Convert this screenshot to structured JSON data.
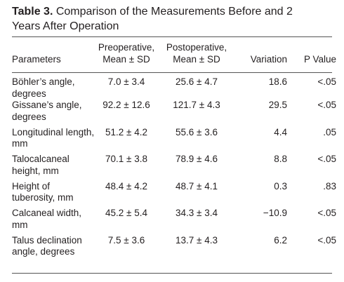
{
  "title": {
    "label": "Table 3.",
    "text": "Comparison of the Measurements Before and 2 Years After Operation"
  },
  "table": {
    "header": [
      [
        "Parameters"
      ],
      [
        "Preoperative,",
        "Mean ± SD"
      ],
      [
        "Postoperative,",
        "Mean ± SD"
      ],
      [
        "Variation"
      ],
      [
        "P Value"
      ]
    ],
    "rows": [
      [
        "Böhler’s angle, degrees",
        "7.0 ± 3.4",
        "25.6 ± 4.7",
        "18.6",
        "<.05"
      ],
      [
        "Gissane’s angle, degrees",
        "92.2 ± 12.6",
        "121.7 ± 4.3",
        "29.5",
        "<.05"
      ],
      [
        "Longitudinal length, mm",
        "51.2 ± 4.2",
        "55.6 ± 3.6",
        "4.4",
        ".05"
      ],
      [
        "Talocalcaneal height, mm",
        "70.1 ± 3.8",
        "78.9 ± 4.6",
        "8.8",
        "<.05"
      ],
      [
        "Height of tuberosity, mm",
        "48.4 ± 4.2",
        "48.7 ± 4.1",
        "0.3",
        ".83"
      ],
      [
        "Calcaneal width, mm",
        "45.2 ± 5.4",
        "34.3 ± 3.4",
        "−10.9",
        "<.05"
      ],
      [
        "Talus declination angle, degrees",
        "7.5 ± 3.6",
        "13.7 ± 4.3",
        "6.2",
        "<.05"
      ]
    ]
  }
}
